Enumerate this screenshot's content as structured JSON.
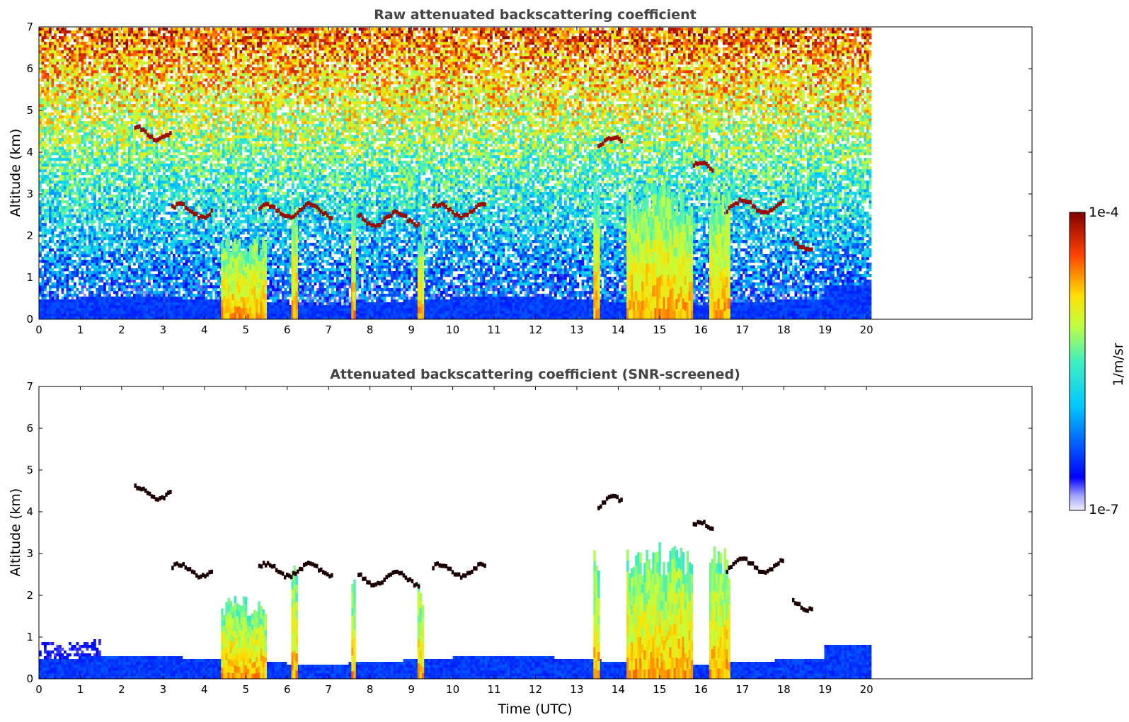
{
  "chart_data": [
    {
      "type": "heatmap",
      "title": "Raw attenuated backscattering coefficient",
      "xlabel": "",
      "ylabel": "Altitude (km)",
      "xlim": [
        0,
        24
      ],
      "ylim": [
        0,
        7
      ],
      "xticks": [
        "0",
        "1",
        "2",
        "3",
        "4",
        "5",
        "6",
        "7",
        "8",
        "9",
        "10",
        "11",
        "12",
        "13",
        "14",
        "15",
        "16",
        "17",
        "18",
        "19",
        "20"
      ],
      "yticks": [
        "0",
        "1",
        "2",
        "3",
        "4",
        "5",
        "6",
        "7"
      ],
      "data_end_time": 20.15,
      "cloud_layers": [
        {
          "t0": 2.3,
          "t1": 3.2,
          "alt": 4.45
        },
        {
          "t0": 3.2,
          "t1": 4.2,
          "alt": 2.6
        },
        {
          "t0": 5.3,
          "t1": 7.1,
          "alt": 2.6
        },
        {
          "t0": 7.7,
          "t1": 9.2,
          "alt": 2.4
        },
        {
          "t0": 9.5,
          "t1": 10.8,
          "alt": 2.6
        },
        {
          "t0": 13.5,
          "t1": 14.1,
          "alt": 4.2
        },
        {
          "t0": 15.8,
          "t1": 16.3,
          "alt": 3.6
        },
        {
          "t0": 16.6,
          "t1": 18.0,
          "alt": 2.7
        },
        {
          "t0": 18.2,
          "t1": 18.7,
          "alt": 1.8
        }
      ],
      "precipitation_columns": [
        {
          "t0": 4.4,
          "t1": 5.5,
          "top": 2.0
        },
        {
          "t0": 6.1,
          "t1": 6.25,
          "top": 2.8
        },
        {
          "t0": 7.55,
          "t1": 7.65,
          "top": 2.8
        },
        {
          "t0": 9.15,
          "t1": 9.3,
          "top": 2.3
        },
        {
          "t0": 13.4,
          "t1": 13.55,
          "top": 3.3
        },
        {
          "t0": 14.2,
          "t1": 15.8,
          "top": 3.3
        },
        {
          "t0": 16.2,
          "t1": 16.7,
          "top": 3.2
        }
      ]
    },
    {
      "type": "heatmap",
      "title": "Attenuated backscattering coefficient (SNR-screened)",
      "xlabel": "Time (UTC)",
      "ylabel": "Altitude (km)",
      "xlim": [
        0,
        24
      ],
      "ylim": [
        0,
        7
      ],
      "xticks": [
        "0",
        "1",
        "2",
        "3",
        "4",
        "5",
        "6",
        "7",
        "8",
        "9",
        "10",
        "11",
        "12",
        "13",
        "14",
        "15",
        "16",
        "17",
        "18",
        "19",
        "20"
      ],
      "yticks": [
        "0",
        "1",
        "2",
        "3",
        "4",
        "5",
        "6",
        "7"
      ],
      "data_end_time": 20.15
    }
  ],
  "colorbar": {
    "max_label": "1e-4",
    "min_label": "1e-7",
    "unit_label": "1/m/sr",
    "colormap": "jet"
  }
}
